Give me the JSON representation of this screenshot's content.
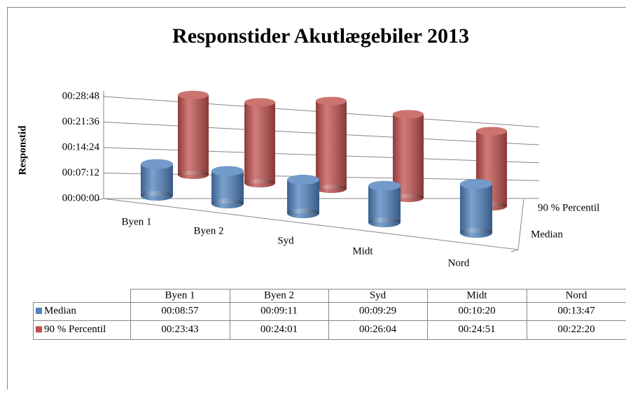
{
  "chart_data": {
    "type": "bar",
    "title": "Responstider Akutlægebiler 2013",
    "y_label": "Responstid",
    "categories": [
      "Byen 1",
      "Byen 2",
      "Syd",
      "Midt",
      "Nord"
    ],
    "series": [
      {
        "name": "Median",
        "color": "#4f81bd",
        "values": [
          537,
          551,
          569,
          620,
          827
        ],
        "value_labels": [
          "00:08:57",
          "00:09:11",
          "00:09:29",
          "00:10:20",
          "00:13:47"
        ]
      },
      {
        "name": "90 % Percentil",
        "color": "#c0504d",
        "values": [
          1423,
          1441,
          1564,
          1491,
          1340
        ],
        "value_labels": [
          "00:23:43",
          "00:24:01",
          "00:26:04",
          "00:24:51",
          "00:22:20"
        ]
      }
    ],
    "ylim": [
      0,
      1728
    ],
    "yticks": [
      {
        "value": 0,
        "label": "00:00:00"
      },
      {
        "value": 432,
        "label": "00:07:12"
      },
      {
        "value": 864,
        "label": "00:14:24"
      },
      {
        "value": 1296,
        "label": "00:21:36"
      },
      {
        "value": 1728,
        "label": "00:28:48"
      }
    ],
    "grid": true
  }
}
